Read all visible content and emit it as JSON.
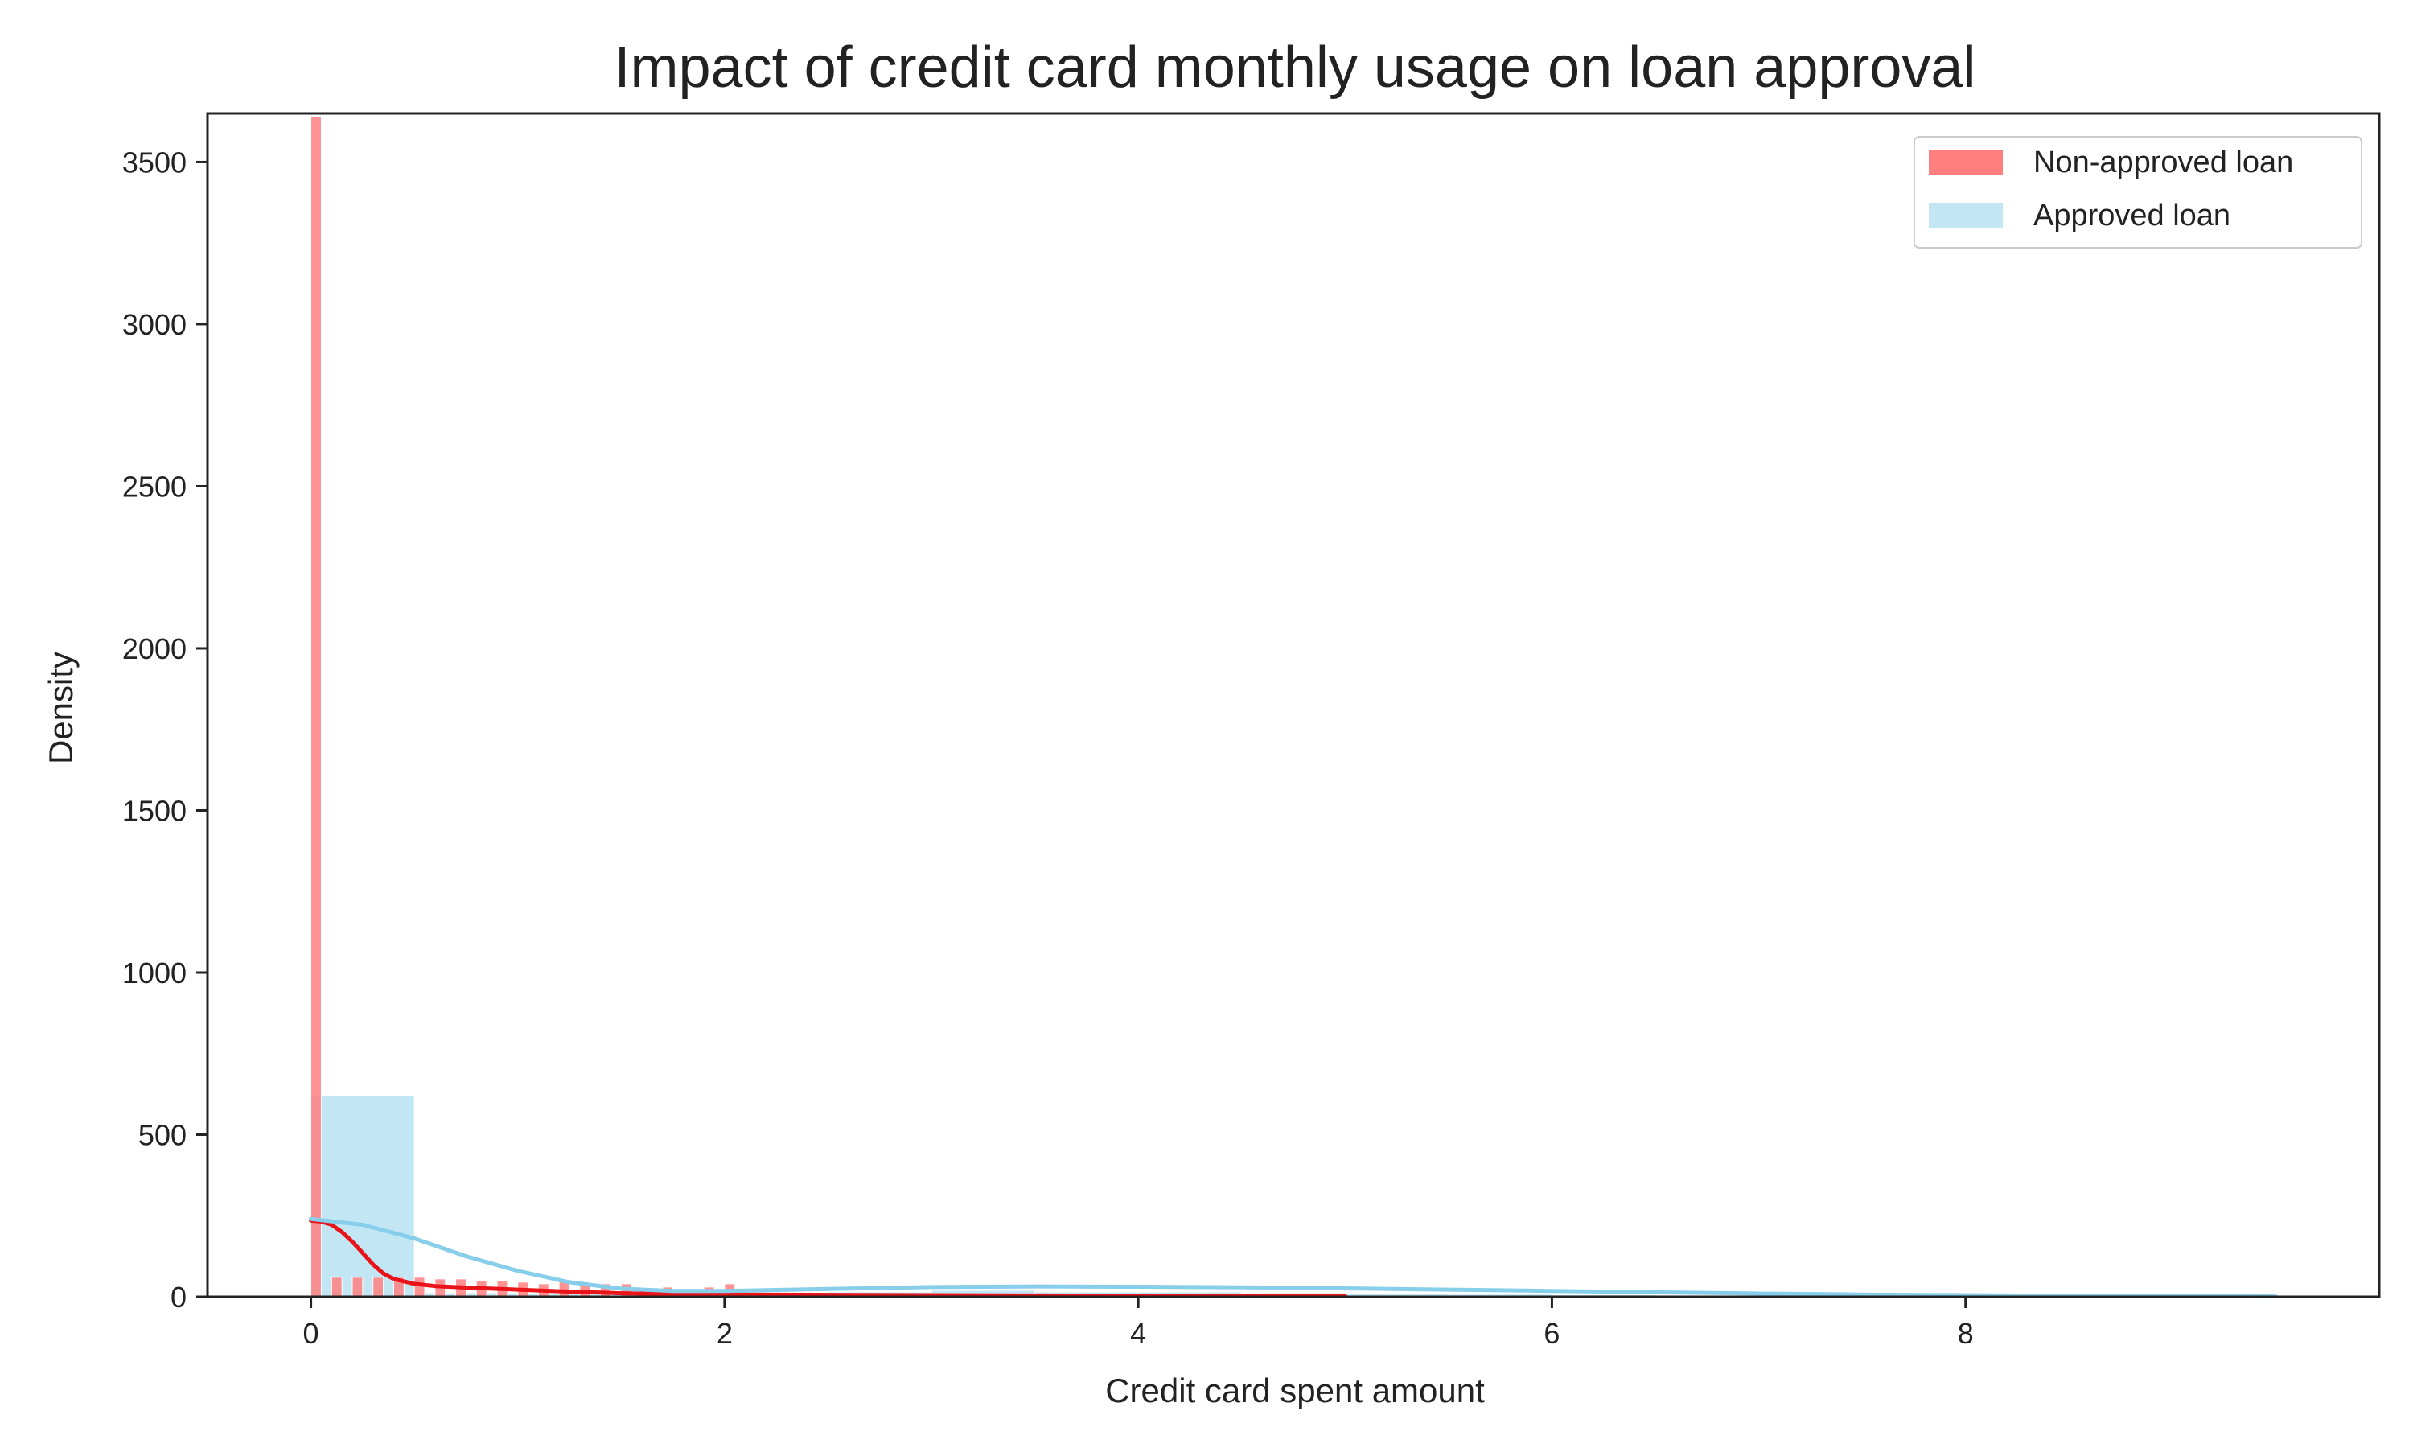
{
  "chart_data": {
    "type": "histogram",
    "title": "Impact of credit card monthly usage on loan approval",
    "xlabel": "Credit card spent amount",
    "ylabel": "Density",
    "xlim": [
      -0.5,
      10.0
    ],
    "ylim": [
      0,
      3650
    ],
    "xticks": [
      0,
      2,
      4,
      6,
      8
    ],
    "yticks": [
      0,
      500,
      1000,
      1500,
      2000,
      2500,
      3000,
      3500
    ],
    "grid": false,
    "legend": {
      "placement": "top-right"
    },
    "series": [
      {
        "name": "Non-approved loan",
        "color": "#ff7f7f",
        "kde_color": "#e8141a",
        "bin_width": 0.05,
        "bins": [
          {
            "x": 0.0,
            "y": 3640
          },
          {
            "x": 0.1,
            "y": 60
          },
          {
            "x": 0.2,
            "y": 60
          },
          {
            "x": 0.3,
            "y": 60
          },
          {
            "x": 0.4,
            "y": 60
          },
          {
            "x": 0.5,
            "y": 60
          },
          {
            "x": 0.6,
            "y": 55
          },
          {
            "x": 0.7,
            "y": 55
          },
          {
            "x": 0.8,
            "y": 50
          },
          {
            "x": 0.9,
            "y": 50
          },
          {
            "x": 1.0,
            "y": 45
          },
          {
            "x": 1.1,
            "y": 40
          },
          {
            "x": 1.2,
            "y": 50
          },
          {
            "x": 1.3,
            "y": 35
          },
          {
            "x": 1.4,
            "y": 40
          },
          {
            "x": 1.5,
            "y": 40
          },
          {
            "x": 1.7,
            "y": 30
          },
          {
            "x": 1.8,
            "y": 25
          },
          {
            "x": 1.9,
            "y": 30
          },
          {
            "x": 2.0,
            "y": 40
          }
        ],
        "kde": {
          "x": [
            0.0,
            0.05,
            0.1,
            0.15,
            0.2,
            0.25,
            0.3,
            0.35,
            0.4,
            0.5,
            0.6,
            0.8,
            1.0,
            1.2,
            1.5,
            1.8,
            2.0,
            2.5,
            3.0,
            3.5,
            4.0,
            5.0
          ],
          "y": [
            235,
            232,
            222,
            200,
            170,
            135,
            100,
            72,
            55,
            40,
            33,
            27,
            22,
            17,
            11,
            8,
            7,
            6,
            5,
            4,
            3,
            2
          ]
        }
      },
      {
        "name": "Approved loan",
        "color": "#87ceeb",
        "kde_color": "#87ceeb",
        "bin_width": 0.5,
        "bins": [
          {
            "x": 0.0,
            "y": 620
          },
          {
            "x": 0.5,
            "y": 12
          },
          {
            "x": 1.0,
            "y": 10
          },
          {
            "x": 1.5,
            "y": 8
          },
          {
            "x": 2.0,
            "y": 10
          },
          {
            "x": 2.5,
            "y": 15
          },
          {
            "x": 3.0,
            "y": 20
          },
          {
            "x": 3.5,
            "y": 15
          },
          {
            "x": 4.0,
            "y": 15
          },
          {
            "x": 4.5,
            "y": 12
          },
          {
            "x": 5.0,
            "y": 10
          },
          {
            "x": 5.5,
            "y": 8
          },
          {
            "x": 6.0,
            "y": 6
          },
          {
            "x": 6.5,
            "y": 5
          },
          {
            "x": 7.0,
            "y": 4
          },
          {
            "x": 7.5,
            "y": 3
          },
          {
            "x": 8.0,
            "y": 2
          },
          {
            "x": 8.5,
            "y": 2
          },
          {
            "x": 9.0,
            "y": 1
          }
        ],
        "kde": {
          "x": [
            0.0,
            0.25,
            0.5,
            0.75,
            1.0,
            1.25,
            1.5,
            1.75,
            2.0,
            2.5,
            3.0,
            3.5,
            4.0,
            4.5,
            5.0,
            5.5,
            6.0,
            6.5,
            7.0,
            7.5,
            8.0,
            8.5,
            9.0,
            9.5
          ],
          "y": [
            240,
            222,
            180,
            125,
            80,
            45,
            25,
            18,
            18,
            24,
            30,
            32,
            31,
            29,
            26,
            22,
            18,
            14,
            10,
            7,
            5,
            3,
            2,
            1
          ]
        }
      }
    ]
  }
}
